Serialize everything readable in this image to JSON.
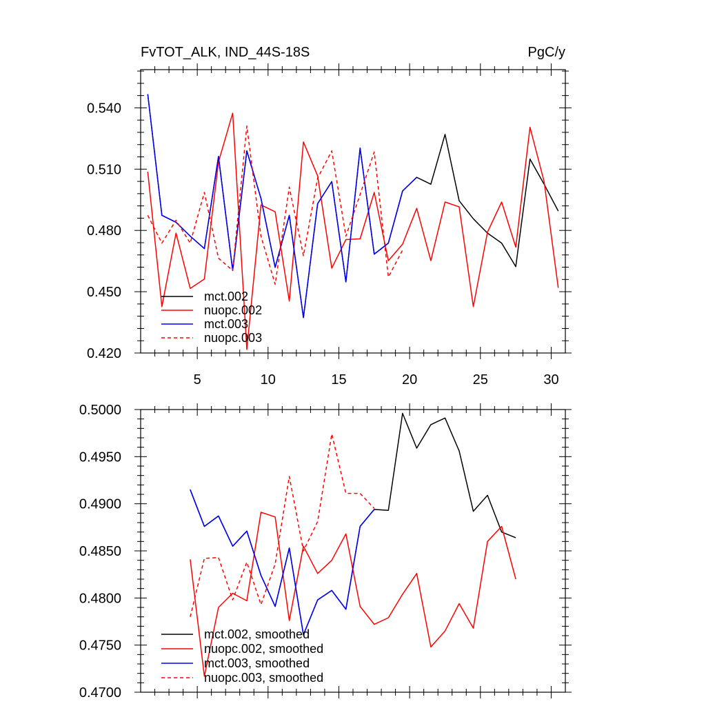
{
  "chart_data": [
    {
      "type": "line",
      "title_left": "FvTOT_ALK, IND_44S-18S",
      "title_right": "PgC/y",
      "xlim": [
        1,
        31
      ],
      "ylim": [
        0.42,
        0.5587
      ],
      "xticks": [
        5,
        10,
        15,
        20,
        25,
        30
      ],
      "xtick_labels": [
        "5",
        "10",
        "15",
        "20",
        "25",
        "30"
      ],
      "yticks": [
        0.42,
        0.45,
        0.48,
        0.51,
        0.54
      ],
      "ytick_labels": [
        "0.420",
        "0.450",
        "0.480",
        "0.510",
        "0.540"
      ],
      "legend_position": "bottom-left",
      "series": [
        {
          "name": "mct.002",
          "color": "#000000",
          "dash": "solid",
          "x": [
            1.5,
            2.5,
            3.5,
            4.5,
            5.5,
            6.5,
            7.5,
            8.5,
            9.5,
            10.5,
            11.5,
            12.5,
            13.5,
            14.5,
            15.5,
            16.5,
            17.5,
            18.5,
            19.5,
            20.5,
            21.5,
            22.5,
            23.5,
            24.5,
            25.5,
            26.5,
            27.5,
            28.5,
            29.5,
            30.5
          ],
          "values": [
            0.5467,
            0.4874,
            0.484,
            0.4772,
            0.4711,
            0.5162,
            0.4604,
            0.5189,
            0.4957,
            0.4619,
            0.4874,
            0.4373,
            0.4931,
            0.5039,
            0.4548,
            0.5203,
            0.4684,
            0.4738,
            0.4993,
            0.506,
            0.5026,
            0.527,
            0.4945,
            0.4857,
            0.4787,
            0.4738,
            0.4623,
            0.5149,
            0.5026,
            0.4895
          ]
        },
        {
          "name": "nuopc.002",
          "color": "#ff0000",
          "dash": "solid",
          "x": [
            1.5,
            2.5,
            3.5,
            4.5,
            5.5,
            6.5,
            7.5,
            8.5,
            9.5,
            10.5,
            11.5,
            12.5,
            13.5,
            14.5,
            15.5,
            16.5,
            17.5,
            18.5,
            19.5,
            20.5,
            21.5,
            22.5,
            23.5,
            24.5,
            25.5,
            26.5,
            27.5,
            28.5,
            29.5,
            30.5
          ],
          "values": [
            0.5087,
            0.4427,
            0.4787,
            0.4516,
            0.4562,
            0.5135,
            0.5374,
            0.4217,
            0.4925,
            0.4891,
            0.4454,
            0.5233,
            0.5067,
            0.4615,
            0.4755,
            0.4759,
            0.4986,
            0.4652,
            0.4733,
            0.4908,
            0.4652,
            0.4939,
            0.4915,
            0.4427,
            0.4792,
            0.4939,
            0.4718,
            0.5305,
            0.5039,
            0.4519
          ]
        },
        {
          "name": "mct.003",
          "color": "#0000ff",
          "dash": "solid",
          "x": [
            1.5,
            2.5,
            3.5,
            4.5,
            5.5,
            6.5,
            7.5,
            8.5,
            9.5,
            10.5,
            11.5,
            12.5,
            13.5,
            14.5,
            15.5,
            16.5,
            17.5,
            18.5,
            19.5,
            20.5
          ],
          "values": [
            0.5467,
            0.4874,
            0.484,
            0.4772,
            0.4711,
            0.5162,
            0.4604,
            0.5189,
            0.4957,
            0.4619,
            0.4874,
            0.4373,
            0.4931,
            0.5039,
            0.4548,
            0.5203,
            0.4684,
            0.4738,
            0.4993,
            0.506
          ]
        },
        {
          "name": "nuopc.003",
          "color": "#ff0000",
          "dash": "dashed",
          "x": [
            1.5,
            2.5,
            3.5,
            4.5,
            5.5,
            6.5,
            7.5,
            8.5,
            9.5,
            10.5,
            11.5,
            12.5,
            13.5,
            14.5,
            15.5,
            16.5,
            17.5,
            18.5,
            19.5
          ],
          "values": [
            0.4874,
            0.4738,
            0.485,
            0.4738,
            0.4986,
            0.4664,
            0.4604,
            0.5311,
            0.4772,
            0.4536,
            0.5012,
            0.4676,
            0.5056,
            0.5189,
            0.4772,
            0.4976,
            0.5184,
            0.4572,
            0.4704
          ]
        }
      ]
    },
    {
      "type": "line",
      "xlim": [
        1,
        31
      ],
      "ylim": [
        0.47,
        0.5
      ],
      "xticks": [
        5,
        10,
        15,
        20,
        25,
        30
      ],
      "yticks": [
        0.47,
        0.475,
        0.48,
        0.485,
        0.49,
        0.495,
        0.5
      ],
      "ytick_labels": [
        "0.4700",
        "0.4750",
        "0.4800",
        "0.4850",
        "0.4900",
        "0.4950",
        "0.5000"
      ],
      "legend_position": "bottom-left",
      "series": [
        {
          "name": "mct.002, smoothed",
          "color": "#000000",
          "dash": "solid",
          "x": [
            4.5,
            5.5,
            6.5,
            7.5,
            8.5,
            9.5,
            10.5,
            11.5,
            12.5,
            13.5,
            14.5,
            15.5,
            16.5,
            17.5,
            18.5,
            19.5,
            20.5,
            21.5,
            22.5,
            23.5,
            24.5,
            25.5,
            26.5,
            27.5
          ],
          "values": [
            0.4915,
            0.4876,
            0.4887,
            0.4855,
            0.4871,
            0.4824,
            0.4791,
            0.4853,
            0.4761,
            0.4798,
            0.4808,
            0.4788,
            0.4876,
            0.4894,
            0.4893,
            0.4996,
            0.4959,
            0.4984,
            0.4991,
            0.4956,
            0.4892,
            0.4909,
            0.487,
            0.4864
          ]
        },
        {
          "name": "nuopc.002, smoothed",
          "color": "#ff0000",
          "dash": "solid",
          "x": [
            4.5,
            5.5,
            6.5,
            7.5,
            8.5,
            9.5,
            10.5,
            11.5,
            12.5,
            13.5,
            14.5,
            15.5,
            16.5,
            17.5,
            18.5,
            19.5,
            20.5,
            21.5,
            22.5,
            23.5,
            24.5,
            25.5,
            26.5,
            27.5
          ],
          "values": [
            0.4841,
            0.4717,
            0.479,
            0.4805,
            0.4797,
            0.4891,
            0.4886,
            0.4776,
            0.4855,
            0.4826,
            0.484,
            0.4868,
            0.4791,
            0.4772,
            0.4779,
            0.4804,
            0.4826,
            0.4748,
            0.4765,
            0.4794,
            0.4768,
            0.486,
            0.4876,
            0.482
          ]
        },
        {
          "name": "mct.003, smoothed",
          "color": "#0000ff",
          "dash": "solid",
          "x": [
            4.5,
            5.5,
            6.5,
            7.5,
            8.5,
            9.5,
            10.5,
            11.5,
            12.5,
            13.5,
            14.5,
            15.5,
            16.5,
            17.5
          ],
          "values": [
            0.4915,
            0.4876,
            0.4887,
            0.4855,
            0.4871,
            0.4824,
            0.4791,
            0.4853,
            0.4761,
            0.4798,
            0.4808,
            0.4788,
            0.4876,
            0.4894
          ]
        },
        {
          "name": "nuopc.003, smoothed",
          "color": "#ff0000",
          "dash": "dashed",
          "x": [
            4.5,
            5.5,
            6.5,
            7.5,
            8.5,
            9.5,
            10.5,
            11.5,
            12.5,
            13.5,
            14.5,
            15.5,
            16.5,
            17.5
          ],
          "values": [
            0.478,
            0.4842,
            0.4843,
            0.4798,
            0.4838,
            0.4793,
            0.4836,
            0.4929,
            0.485,
            0.4881,
            0.4974,
            0.4911,
            0.4911,
            0.4895
          ]
        }
      ]
    }
  ]
}
